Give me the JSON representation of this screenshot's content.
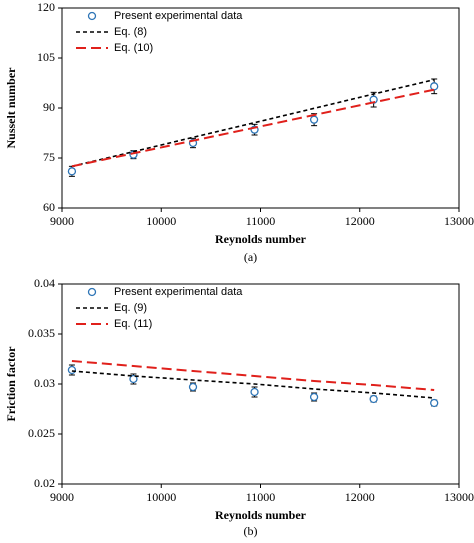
{
  "chart_data": [
    {
      "type": "line",
      "caption": "(a)",
      "xlabel": "Reynolds number",
      "ylabel": "Nusselt number",
      "xlim": [
        9000,
        13000
      ],
      "xticks": [
        9000,
        10000,
        11000,
        12000,
        13000
      ],
      "ylim": [
        60,
        120
      ],
      "yticks": [
        60,
        75,
        90,
        105,
        120
      ],
      "x": [
        9100,
        9720,
        10320,
        10940,
        11540,
        12140,
        12750
      ],
      "series": [
        {
          "name": "Present experimental data",
          "color": "#2e75b6",
          "style": "marker",
          "values": [
            71,
            76,
            79.5,
            83.5,
            86.5,
            92.5,
            96.5
          ],
          "errors": [
            1.5,
            1.2,
            1.4,
            1.6,
            1.8,
            2.2,
            2.2
          ]
        },
        {
          "name": "Eq. (8)",
          "color": "#000000",
          "style": "short-dash",
          "values": [
            72.5,
            76.9,
            81.2,
            85.6,
            89.9,
            94.2,
            98.5
          ]
        },
        {
          "name": "Eq. (10)",
          "color": "#e0201b",
          "style": "long-dash",
          "values": [
            72.5,
            76.4,
            80.2,
            84.1,
            87.9,
            91.7,
            95.5
          ]
        }
      ]
    },
    {
      "type": "line",
      "caption": "(b)",
      "xlabel": "Reynolds number",
      "ylabel": "Friction factor",
      "xlim": [
        9000,
        13000
      ],
      "xticks": [
        9000,
        10000,
        11000,
        12000,
        13000
      ],
      "ylim": [
        0.02,
        0.04
      ],
      "yticks": [
        0.02,
        0.025,
        0.03,
        0.035,
        0.04
      ],
      "x": [
        9100,
        9720,
        10320,
        10940,
        11540,
        12140,
        12750
      ],
      "series": [
        {
          "name": "Present experimental data",
          "color": "#2e75b6",
          "style": "marker",
          "values": [
            0.0314,
            0.0305,
            0.0297,
            0.0292,
            0.0287,
            0.0285,
            0.0281
          ],
          "errors": [
            0.0005,
            0.0005,
            0.0004,
            0.0005,
            0.0004,
            0.0003,
            0.0003
          ]
        },
        {
          "name": "Eq. (9)",
          "color": "#000000",
          "style": "short-dash",
          "values": [
            0.0313,
            0.0308,
            0.0304,
            0.03,
            0.0295,
            0.0291,
            0.0286
          ]
        },
        {
          "name": "Eq. (11)",
          "color": "#e0201b",
          "style": "long-dash",
          "values": [
            0.0323,
            0.0318,
            0.0313,
            0.0308,
            0.0303,
            0.0299,
            0.0294
          ]
        }
      ]
    }
  ]
}
